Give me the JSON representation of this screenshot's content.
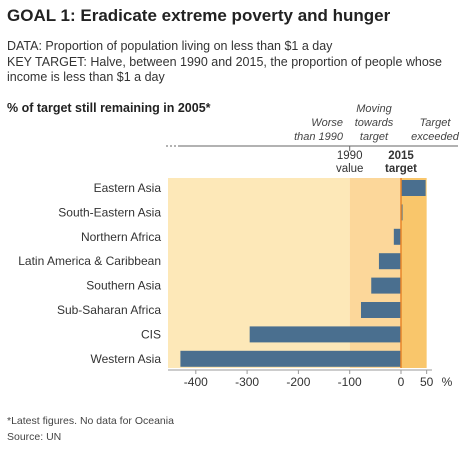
{
  "header": {
    "title": "GOAL 1: Eradicate extreme poverty and hunger",
    "data_line": "DATA: Proportion of population living on less than $1 a day",
    "target_line1": "KEY TARGET: Halve, between 1990 and 2015, the proportion of people whose",
    "target_line2": "income is less than $1 a day"
  },
  "footer": {
    "note": "*Latest figures. No data for Oceania",
    "source": "Source: UN"
  },
  "colors": {
    "worse_band": "#fde8b8",
    "moving_band": "#fcd79a",
    "exceeded_band": "#f9c66b",
    "bar": "#4a6f8f",
    "target_line": "#e8862a",
    "axis": "#999999"
  },
  "chart_data": {
    "type": "bar",
    "orientation": "horizontal",
    "title": "% of target still remaining in 2005*",
    "categories": [
      "Eastern Asia",
      "South-Eastern Asia",
      "Northern Africa",
      "Latin America & Caribbean",
      "Southern Asia",
      "Sub-Saharan Africa",
      "CIS",
      "Western Asia"
    ],
    "values": [
      48,
      3,
      -14,
      -43,
      -58,
      -78,
      -295,
      -430
    ],
    "xlim": [
      -460,
      50
    ],
    "ticks": [
      -400,
      -300,
      -200,
      -100,
      0,
      50
    ],
    "tick_labels": [
      "-400",
      "-300",
      "-200",
      "-100",
      "0",
      "50"
    ],
    "x_unit": "%",
    "bands": [
      {
        "from": -460,
        "to": -100,
        "label_line1": "Worse",
        "label_line2": "than 1990",
        "color": "#fde8b8"
      },
      {
        "from": -100,
        "to": 0,
        "label_line1": "Moving",
        "label_line2": "towards",
        "label_line3": "target",
        "color": "#fcd79a"
      },
      {
        "from": 0,
        "to": 50,
        "label_line1": "Target",
        "label_line2": "exceeded",
        "color": "#f9c66b"
      }
    ],
    "markers": [
      {
        "x": -100,
        "line1": "1990",
        "line2": "value"
      },
      {
        "x": 0,
        "line1": "2015",
        "line2": "target"
      }
    ]
  }
}
